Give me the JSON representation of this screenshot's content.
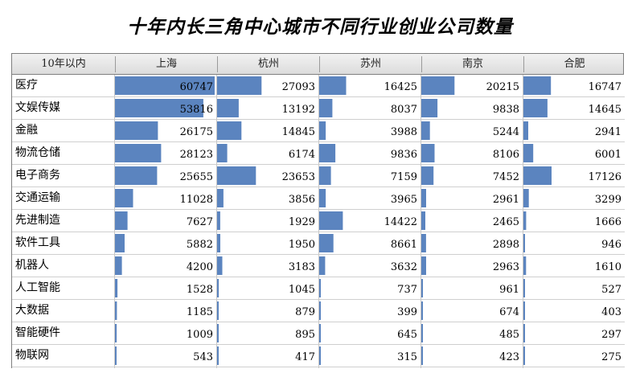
{
  "title": "十年内长三角中心城市不同行业创业公司数量",
  "colors": {
    "bar": "#5b84bf",
    "grid": "#cfcfcf",
    "header_bg": "#e6e6e6"
  },
  "chart_data": {
    "type": "table",
    "corner_label": "10年以内",
    "columns": [
      "上海",
      "杭州",
      "苏州",
      "南京",
      "合肥"
    ],
    "rows": [
      {
        "label": "医疗",
        "values": [
          60747,
          27093,
          16425,
          20215,
          16747
        ]
      },
      {
        "label": "文娱传媒",
        "values": [
          53816,
          13192,
          8037,
          9838,
          14645
        ]
      },
      {
        "label": "金融",
        "values": [
          26175,
          14845,
          3988,
          5244,
          2941
        ]
      },
      {
        "label": "物流仓储",
        "values": [
          28123,
          6174,
          9836,
          8106,
          6001
        ]
      },
      {
        "label": "电子商务",
        "values": [
          25655,
          23653,
          7159,
          7452,
          17126
        ]
      },
      {
        "label": "交通运输",
        "values": [
          11028,
          3856,
          3965,
          2961,
          3299
        ]
      },
      {
        "label": "先进制造",
        "values": [
          7627,
          1929,
          14422,
          2465,
          1666
        ]
      },
      {
        "label": "软件工具",
        "values": [
          5882,
          1950,
          8661,
          2898,
          946
        ]
      },
      {
        "label": "机器人",
        "values": [
          4200,
          3183,
          3632,
          2963,
          1610
        ]
      },
      {
        "label": "人工智能",
        "values": [
          1528,
          1045,
          737,
          961,
          527
        ]
      },
      {
        "label": "大数据",
        "values": [
          1185,
          879,
          399,
          674,
          403
        ]
      },
      {
        "label": "智能硬件",
        "values": [
          1009,
          895,
          645,
          485,
          297
        ]
      },
      {
        "label": "物联网",
        "values": [
          543,
          417,
          315,
          423,
          275
        ]
      }
    ],
    "bar_max_value": 60747
  }
}
